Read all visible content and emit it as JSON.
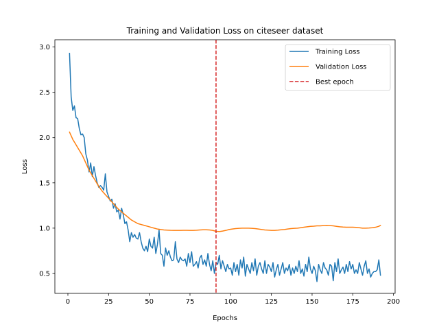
{
  "chart_data": {
    "type": "line",
    "title": "Training and Validation Loss on citeseer dataset",
    "xlabel": "Epochs",
    "ylabel": "Loss",
    "xlim": [
      -8,
      201
    ],
    "ylim": [
      0.28,
      3.08
    ],
    "xticks": [
      0,
      25,
      50,
      75,
      100,
      125,
      150,
      175,
      200
    ],
    "yticks": [
      0.5,
      1.0,
      1.5,
      2.0,
      2.5,
      3.0
    ],
    "xtick_labels": [
      "0",
      "25",
      "50",
      "75",
      "100",
      "125",
      "150",
      "175",
      "200"
    ],
    "ytick_labels": [
      "0.5",
      "1.0",
      "1.5",
      "2.0",
      "2.5",
      "3.0"
    ],
    "grid": false,
    "legend_position": "top-right",
    "best_epoch": 91,
    "series": [
      {
        "name": "Training Loss",
        "color": "#1f77b4",
        "style": "solid",
        "x": [
          1,
          2,
          3,
          4,
          5,
          6,
          7,
          8,
          9,
          10,
          11,
          12,
          13,
          14,
          15,
          16,
          17,
          18,
          19,
          20,
          21,
          22,
          23,
          24,
          25,
          26,
          27,
          28,
          29,
          30,
          31,
          32,
          33,
          34,
          35,
          36,
          37,
          38,
          39,
          40,
          41,
          42,
          43,
          44,
          45,
          46,
          47,
          48,
          49,
          50,
          51,
          52,
          53,
          54,
          55,
          56,
          57,
          58,
          59,
          60,
          61,
          62,
          63,
          64,
          65,
          66,
          67,
          68,
          69,
          70,
          71,
          72,
          73,
          74,
          75,
          76,
          77,
          78,
          79,
          80,
          81,
          82,
          83,
          84,
          85,
          86,
          87,
          88,
          89,
          90,
          91,
          92,
          93,
          94,
          95,
          96,
          97,
          98,
          99,
          100,
          101,
          102,
          103,
          104,
          105,
          106,
          107,
          108,
          109,
          110,
          111,
          112,
          113,
          114,
          115,
          116,
          117,
          118,
          119,
          120,
          121,
          122,
          123,
          124,
          125,
          126,
          127,
          128,
          129,
          130,
          131,
          132,
          133,
          134,
          135,
          136,
          137,
          138,
          139,
          140,
          141,
          142,
          143,
          144,
          145,
          146,
          147,
          148,
          149,
          150,
          151,
          152,
          153,
          154,
          155,
          156,
          157,
          158,
          159,
          160,
          161,
          162,
          163,
          164,
          165,
          166,
          167,
          168,
          169,
          170,
          171,
          172,
          173,
          174,
          175,
          176,
          177,
          178,
          179,
          180,
          181,
          182,
          183,
          184,
          185,
          186,
          187,
          188,
          189,
          190,
          191,
          192
        ],
        "y": [
          2.93,
          2.45,
          2.3,
          2.35,
          2.22,
          2.21,
          2.1,
          2.03,
          2.04,
          2.0,
          1.82,
          1.75,
          1.62,
          1.72,
          1.57,
          1.68,
          1.58,
          1.5,
          1.45,
          1.47,
          1.45,
          1.42,
          1.6,
          1.4,
          1.35,
          1.3,
          1.32,
          1.22,
          1.27,
          1.18,
          1.2,
          1.1,
          1.22,
          1.15,
          1.05,
          1.07,
          0.98,
          0.85,
          0.95,
          0.9,
          0.93,
          0.89,
          0.88,
          0.95,
          0.85,
          0.78,
          0.75,
          0.8,
          0.74,
          0.88,
          0.8,
          0.78,
          0.9,
          0.72,
          0.82,
          0.98,
          0.72,
          0.7,
          0.58,
          0.78,
          0.7,
          0.75,
          0.68,
          0.64,
          0.65,
          0.85,
          0.66,
          0.62,
          0.68,
          0.65,
          0.64,
          0.66,
          0.58,
          0.72,
          0.62,
          0.74,
          0.58,
          0.6,
          0.63,
          0.56,
          0.67,
          0.7,
          0.6,
          0.65,
          0.58,
          0.72,
          0.6,
          0.53,
          0.64,
          0.5,
          0.62,
          0.6,
          0.7,
          0.55,
          0.64,
          0.58,
          0.52,
          0.6,
          0.55,
          0.56,
          0.48,
          0.62,
          0.52,
          0.6,
          0.48,
          0.65,
          0.56,
          0.68,
          0.47,
          0.6,
          0.55,
          0.5,
          0.62,
          0.53,
          0.66,
          0.48,
          0.58,
          0.62,
          0.55,
          0.5,
          0.64,
          0.5,
          0.6,
          0.57,
          0.52,
          0.62,
          0.46,
          0.54,
          0.6,
          0.48,
          0.55,
          0.62,
          0.5,
          0.56,
          0.53,
          0.6,
          0.48,
          0.56,
          0.5,
          0.58,
          0.52,
          0.64,
          0.5,
          0.55,
          0.47,
          0.6,
          0.52,
          0.68,
          0.55,
          0.5,
          0.58,
          0.53,
          0.41,
          0.6,
          0.54,
          0.5,
          0.62,
          0.56,
          0.54,
          0.48,
          0.6,
          0.58,
          0.42,
          0.62,
          0.52,
          0.66,
          0.5,
          0.54,
          0.57,
          0.5,
          0.6,
          0.52,
          0.63,
          0.55,
          0.6,
          0.5,
          0.54,
          0.5,
          0.62,
          0.55,
          0.48,
          0.58,
          0.64,
          0.5,
          0.55,
          0.46,
          0.5,
          0.52,
          0.52,
          0.54,
          0.65,
          0.48
        ]
      },
      {
        "name": "Validation Loss",
        "color": "#ff7f0e",
        "style": "solid",
        "x": [
          1,
          3,
          5,
          7,
          9,
          11,
          13,
          15,
          17,
          19,
          21,
          23,
          25,
          27,
          29,
          31,
          33,
          35,
          37,
          39,
          41,
          43,
          45,
          47,
          49,
          51,
          53,
          55,
          57,
          59,
          61,
          63,
          65,
          67,
          69,
          71,
          73,
          75,
          77,
          79,
          81,
          83,
          85,
          87,
          89,
          91,
          93,
          95,
          97,
          99,
          101,
          103,
          105,
          107,
          109,
          111,
          113,
          115,
          117,
          119,
          121,
          123,
          125,
          127,
          129,
          131,
          133,
          135,
          137,
          139,
          141,
          143,
          145,
          147,
          149,
          151,
          153,
          155,
          157,
          159,
          161,
          163,
          165,
          167,
          169,
          171,
          173,
          175,
          177,
          179,
          181,
          183,
          185,
          187,
          189,
          191,
          192
        ],
        "y": [
          2.06,
          1.98,
          1.92,
          1.86,
          1.8,
          1.72,
          1.64,
          1.58,
          1.52,
          1.46,
          1.41,
          1.37,
          1.33,
          1.29,
          1.25,
          1.21,
          1.18,
          1.15,
          1.12,
          1.09,
          1.07,
          1.05,
          1.04,
          1.03,
          1.02,
          1.01,
          1.0,
          0.99,
          0.985,
          0.98,
          0.978,
          0.976,
          0.975,
          0.975,
          0.975,
          0.976,
          0.976,
          0.975,
          0.975,
          0.977,
          0.98,
          0.982,
          0.982,
          0.98,
          0.975,
          0.965,
          0.962,
          0.968,
          0.975,
          0.985,
          0.99,
          0.995,
          0.998,
          1.0,
          1.0,
          1.0,
          0.998,
          0.995,
          0.99,
          0.985,
          0.98,
          0.978,
          0.975,
          0.975,
          0.978,
          0.982,
          0.985,
          0.99,
          0.995,
          0.998,
          1.0,
          1.005,
          1.01,
          1.015,
          1.02,
          1.022,
          1.025,
          1.025,
          1.028,
          1.03,
          1.028,
          1.025,
          1.02,
          1.015,
          1.012,
          1.01,
          1.01,
          1.01,
          1.008,
          1.005,
          1.0,
          1.0,
          1.002,
          1.005,
          1.01,
          1.02,
          1.03
        ]
      }
    ],
    "legend": [
      {
        "label": "Training Loss",
        "color": "#1f77b4",
        "style": "solid"
      },
      {
        "label": "Validation Loss",
        "color": "#ff7f0e",
        "style": "solid"
      },
      {
        "label": "Best epoch",
        "color": "#d62728",
        "style": "dashed"
      }
    ]
  }
}
